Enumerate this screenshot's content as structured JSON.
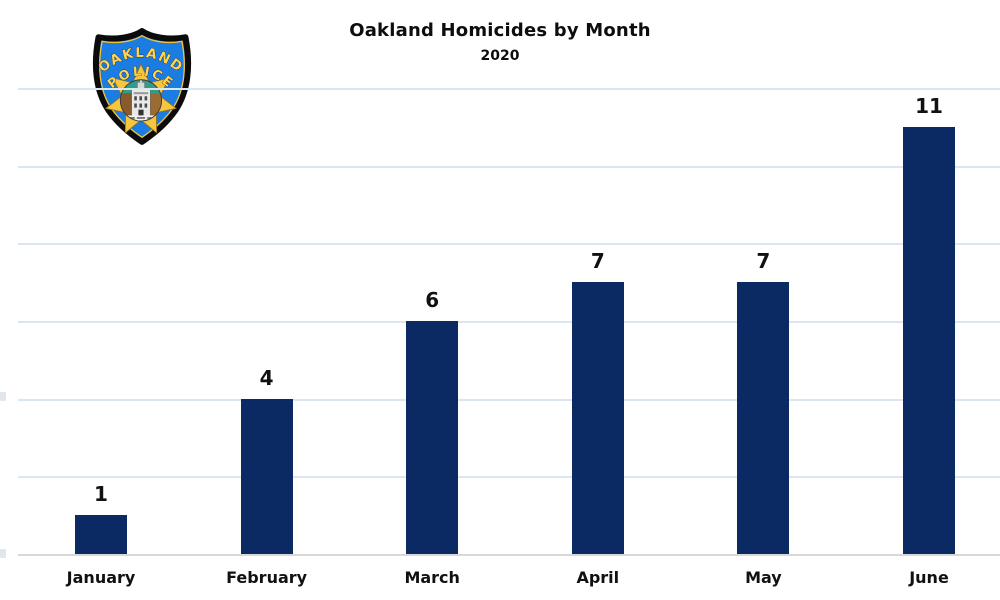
{
  "page": {
    "background_color": "#ffffff"
  },
  "header": {
    "title": "Oakland Homicides by Month",
    "subtitle": "2020"
  },
  "badge": {
    "top_text": "OAKLAND",
    "bottom_text": "POLICE",
    "colors": {
      "shield_blue": "#1b7ce2",
      "border_black": "#0b0b0b",
      "gold": "#f5c63e",
      "text_gold": "#ffd64a"
    }
  },
  "chart_data": {
    "type": "bar",
    "title": "Oakland Homicides by Month",
    "subtitle": "2020",
    "categories": [
      "January",
      "February",
      "March",
      "April",
      "May",
      "June"
    ],
    "values": [
      1,
      4,
      6,
      7,
      7,
      11
    ],
    "xlabel": "",
    "ylabel": "",
    "ylim": [
      0,
      12
    ],
    "gridlines_at": [
      0,
      2,
      4,
      6,
      8,
      10,
      12
    ],
    "grid": true,
    "legend": false,
    "data_labels": true,
    "bar_color": "#0b2a63",
    "gridline_color": "#dbe6f1",
    "baseline_color": "#d8d8d8",
    "label_color": "#111111"
  }
}
